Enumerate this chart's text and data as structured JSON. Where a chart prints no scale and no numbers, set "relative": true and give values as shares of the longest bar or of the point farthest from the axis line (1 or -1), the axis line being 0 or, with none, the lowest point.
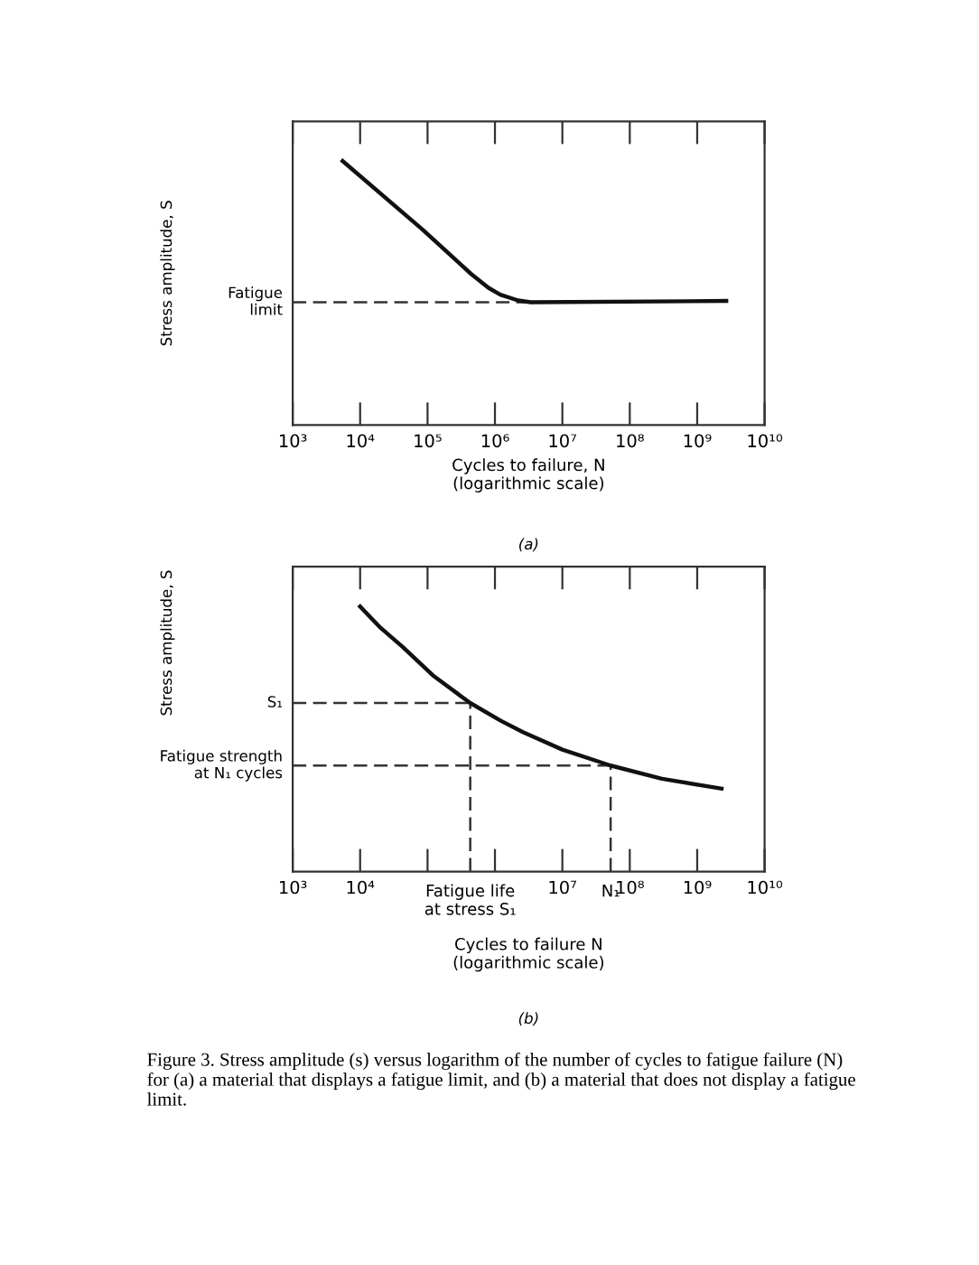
{
  "chart_data": [
    {
      "type": "line",
      "relative": true,
      "log": "x",
      "tick_labels": "x",
      "grid": false,
      "legend": false,
      "marker": "none",
      "line_style": "solid",
      "xlabel": "Cycles to failure, N\n(logarithmic scale)",
      "ylabel": "Stress amplitude, S",
      "xlim": [
        1000,
        10000000000
      ],
      "xticks": [
        {
          "value": 1000,
          "label": "10³"
        },
        {
          "value": 10000,
          "label": "10⁴"
        },
        {
          "value": 100000,
          "label": "10⁵"
        },
        {
          "value": 1000000,
          "label": "10⁶"
        },
        {
          "value": 10000000,
          "label": "10⁷"
        },
        {
          "value": 100000000,
          "label": "10⁸"
        },
        {
          "value": 1000000000,
          "label": "10⁹"
        },
        {
          "value": 10000000000,
          "label": "10¹⁰"
        }
      ],
      "series": [
        {
          "color": "#111111",
          "x": [
            5500,
            83000,
            440000,
            800000,
            1200000,
            2200000,
            3400000,
            2700000000
          ],
          "values": [
            1,
            0.742,
            0.573,
            0.52,
            0.494,
            0.472,
            0.465,
            0.47
          ]
        }
      ],
      "ref_lines": [
        {
          "axis": "y",
          "value": 0.465,
          "label": "Fatigue\nlimit",
          "line_style": "dashed",
          "color": "#333333"
        }
      ],
      "annotations": [
        "(a)"
      ]
    },
    {
      "type": "line",
      "relative": true,
      "log": "x",
      "tick_labels": "x",
      "grid": false,
      "legend": false,
      "marker": "none",
      "line_style": "solid",
      "xlabel": "Cycles to failure N\n(logarithmic scale)",
      "ylabel": "Stress amplitude, S",
      "xlim": [
        1000,
        10000000000
      ],
      "xticks": [
        {
          "value": 1000,
          "label": "10³"
        },
        {
          "value": 10000,
          "label": "10⁴"
        },
        {
          "value": 100000,
          "label": null
        },
        {
          "value": 1000000,
          "label": null
        },
        {
          "value": 10000000,
          "label": "10⁷"
        },
        {
          "value": 100000000,
          "label": "10⁸"
        },
        {
          "value": 1000000000,
          "label": "10⁹"
        },
        {
          "value": 10000000000,
          "label": "10¹⁰"
        }
      ],
      "series": [
        {
          "color": "#111111",
          "x": [
            10000,
            20000,
            43000,
            120000,
            430000,
            1200000,
            2600000,
            10000000,
            52000000,
            300000000,
            2300000000
          ],
          "values": [
            1,
            0.92,
            0.847,
            0.74,
            0.636,
            0.57,
            0.526,
            0.46,
            0.4,
            0.35,
            0.313
          ]
        }
      ],
      "ref_lines": [
        {
          "axis": "y",
          "value": 0.636,
          "label": "S₁",
          "line_style": "dashed",
          "color": "#333333"
        },
        {
          "axis": "y",
          "value": 0.4,
          "label": "Fatigue strength\nat N₁ cycles",
          "line_style": "dashed",
          "color": "#333333"
        },
        {
          "axis": "x",
          "value": 430000,
          "label": "Fatigue life\nat stress S₁",
          "line_style": "dashed",
          "color": "#333333"
        },
        {
          "axis": "x",
          "value": 52000000,
          "label": "N₁",
          "line_style": "dashed",
          "color": "#333333"
        }
      ],
      "annotations": [
        "(b)",
        "Figure 3. Stress amplitude (s) versus logarithm of the number of cycles to fatigue failure (N) for (a) a material that displays a fatigue limit, and (b) a material that does not display a fatigue limit."
      ]
    }
  ]
}
